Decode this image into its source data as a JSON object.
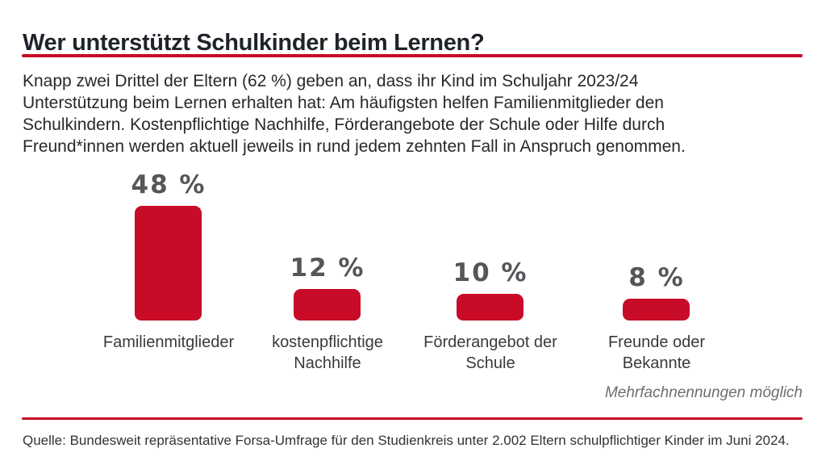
{
  "header": {
    "title": "Wer unterstützt Schulkinder beim Lernen?"
  },
  "intro": {
    "lines": [
      "Knapp zwei Drittel der Eltern (62 %) geben an, dass ihr Kind im Schuljahr 2023/24",
      "Unterstützung beim Lernen erhalten hat: Am häufigsten helfen Familienmitglieder den",
      "Schulkindern. Kostenpflichtige Nachhilfe, Förderangebote der Schule oder Hilfe durch",
      "Freund*innen werden aktuell jeweils in rund jedem zehnten Fall in Anspruch genommen."
    ]
  },
  "chart_data": {
    "type": "bar",
    "title": "Wer unterstützt Schulkinder beim Lernen?",
    "categories": [
      "Familienmitglieder",
      "kostenpflichtige Nachhilfe",
      "Förderangebot der Schule",
      "Freunde oder Bekannte"
    ],
    "category_label_lines": [
      [
        "Familienmitglieder"
      ],
      [
        "kostenpflichtige",
        "Nachhilfe"
      ],
      [
        "Förderangebot der",
        "Schule"
      ],
      [
        "Freunde oder",
        "Bekannte"
      ]
    ],
    "values": [
      48,
      12,
      10,
      8
    ],
    "value_labels": [
      "48 %",
      "12 %",
      "10 %",
      "8 %"
    ],
    "unit": "%",
    "xlabel": "",
    "ylabel": "",
    "ylim": [
      0,
      50
    ],
    "grid": false,
    "legend": false,
    "note": "Mehrfachnennungen möglich",
    "bar_color": "#c80c28"
  },
  "footer": {
    "note": "Mehrfachnennungen möglich",
    "source": "Quelle: Bundesweit repräsentative Forsa-Umfrage für den Studienkreis unter 2.002 Eltern schulpflichtiger Kinder im Juni 2024."
  },
  "colors": {
    "accent_red": "#c80c28",
    "title_text": "#1f2329",
    "body_text": "#28282b",
    "value_label_text": "#55565a",
    "category_label_text": "#3a3a3a",
    "note_text": "#6e6e6e",
    "background": "#ffffff"
  }
}
